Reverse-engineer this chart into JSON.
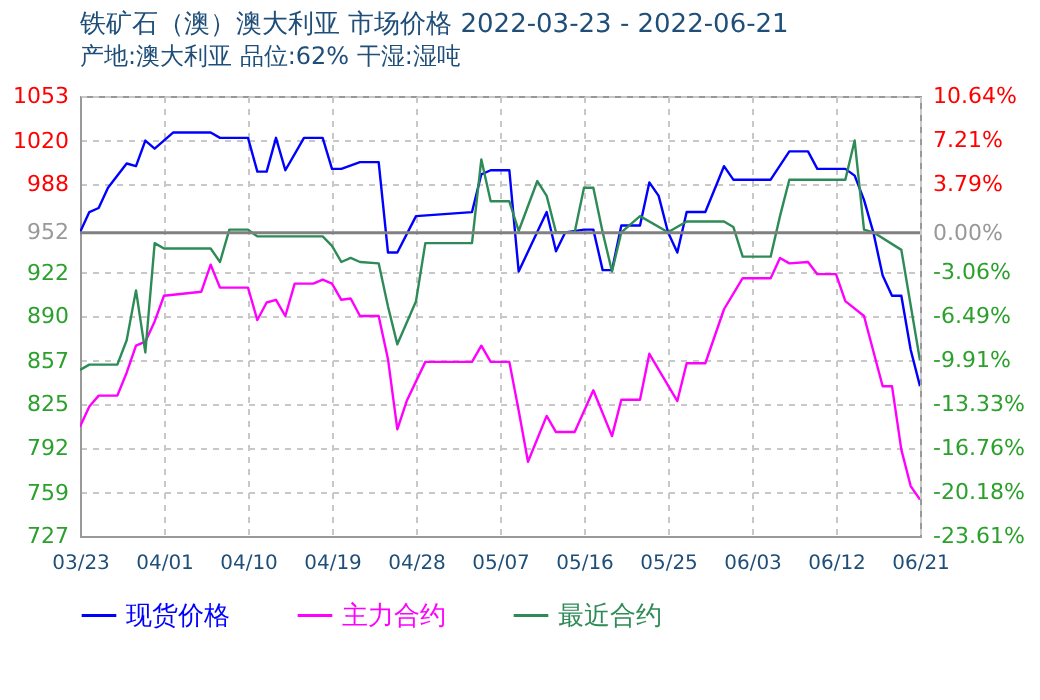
{
  "chart_data": {
    "type": "line",
    "title": "铁矿石（澳）澳大利亚 市场价格 2022-03-23 - 2022-06-21",
    "subtitle": "产地:澳大利亚 品位:62% 干湿:湿吨",
    "xlim": [
      "2022-03-23",
      "2022-06-21"
    ],
    "xticks": [
      {
        "value": "2022-03-23",
        "label": "03/23"
      },
      {
        "value": "2022-04-01",
        "label": "04/01"
      },
      {
        "value": "2022-04-10",
        "label": "04/10"
      },
      {
        "value": "2022-04-19",
        "label": "04/19"
      },
      {
        "value": "2022-04-28",
        "label": "04/28"
      },
      {
        "value": "2022-05-07",
        "label": "05/07"
      },
      {
        "value": "2022-05-16",
        "label": "05/16"
      },
      {
        "value": "2022-05-25",
        "label": "05/25"
      },
      {
        "value": "2022-06-03",
        "label": "06/03"
      },
      {
        "value": "2022-06-12",
        "label": "06/12"
      },
      {
        "value": "2022-06-21",
        "label": "06/21"
      }
    ],
    "ylim": [
      727,
      1053
    ],
    "yticks": [
      727,
      759,
      792,
      825,
      857,
      890,
      922,
      952,
      988,
      1020,
      1053
    ],
    "y2lim": [
      -23.61,
      10.64
    ],
    "y2ticks": [
      {
        "value": -23.61,
        "label": "-23.61%"
      },
      {
        "value": -20.18,
        "label": "-20.18%"
      },
      {
        "value": -16.76,
        "label": "-16.76%"
      },
      {
        "value": -13.33,
        "label": "-13.33%"
      },
      {
        "value": -9.91,
        "label": "-9.91%"
      },
      {
        "value": -6.49,
        "label": "-6.49%"
      },
      {
        "value": -3.06,
        "label": "-3.06%"
      },
      {
        "value": 0,
        "label": "0.00%"
      },
      {
        "value": 3.79,
        "label": "3.79%"
      },
      {
        "value": 7.21,
        "label": "7.21%"
      },
      {
        "value": 10.64,
        "label": "10.64%"
      }
    ],
    "ref_lines": [
      {
        "axis": "y2",
        "value": 0,
        "color": "#808080"
      }
    ],
    "grid": true,
    "legend": "bottom",
    "line_style": "solid",
    "marker": "none",
    "series": [
      {
        "name": "现货价格",
        "color": "#0000ff",
        "x": [
          "2022-03-23",
          "2022-03-24",
          "2022-03-25",
          "2022-03-26",
          "2022-03-28",
          "2022-03-29",
          "2022-03-30",
          "2022-03-31",
          "2022-04-02",
          "2022-04-06",
          "2022-04-07",
          "2022-04-10",
          "2022-04-11",
          "2022-04-12",
          "2022-04-13",
          "2022-04-14",
          "2022-04-16",
          "2022-04-18",
          "2022-04-19",
          "2022-04-20",
          "2022-04-22",
          "2022-04-24",
          "2022-04-25",
          "2022-04-26",
          "2022-04-28",
          "2022-05-04",
          "2022-05-05",
          "2022-05-06",
          "2022-05-08",
          "2022-05-09",
          "2022-05-12",
          "2022-05-13",
          "2022-05-14",
          "2022-05-16",
          "2022-05-17",
          "2022-05-18",
          "2022-05-19",
          "2022-05-20",
          "2022-05-22",
          "2022-05-23",
          "2022-05-24",
          "2022-05-25",
          "2022-05-26",
          "2022-05-27",
          "2022-05-29",
          "2022-05-31",
          "2022-06-01",
          "2022-06-05",
          "2022-06-07",
          "2022-06-09",
          "2022-06-10",
          "2022-06-13",
          "2022-06-14",
          "2022-06-15",
          "2022-06-16",
          "2022-06-17",
          "2022-06-18",
          "2022-06-19",
          "2022-06-20",
          "2022-06-21"
        ],
        "values": [
          952,
          967,
          970,
          985,
          1003,
          1001,
          1020,
          1014,
          1026,
          1026,
          1022,
          1022,
          997,
          997,
          1022,
          998,
          1022,
          1022,
          999,
          999,
          1004,
          1004,
          937,
          937,
          964,
          967,
          995,
          998,
          998,
          923,
          967,
          938,
          952,
          954,
          954,
          924,
          924,
          957,
          957,
          989,
          979,
          952,
          937,
          967,
          967,
          1001,
          991,
          991,
          1012,
          1012,
          999,
          999,
          994,
          976,
          952,
          920,
          905,
          905,
          865,
          838
        ]
      },
      {
        "name": "主力合约",
        "color": "#ff00ff",
        "x": [
          "2022-03-23",
          "2022-03-24",
          "2022-03-25",
          "2022-03-27",
          "2022-03-28",
          "2022-03-29",
          "2022-03-30",
          "2022-03-31",
          "2022-04-01",
          "2022-04-05",
          "2022-04-06",
          "2022-04-07",
          "2022-04-10",
          "2022-04-11",
          "2022-04-12",
          "2022-04-13",
          "2022-04-14",
          "2022-04-15",
          "2022-04-17",
          "2022-04-18",
          "2022-04-19",
          "2022-04-20",
          "2022-04-21",
          "2022-04-22",
          "2022-04-24",
          "2022-04-25",
          "2022-04-26",
          "2022-04-27",
          "2022-04-29",
          "2022-05-04",
          "2022-05-05",
          "2022-05-06",
          "2022-05-08",
          "2022-05-09",
          "2022-05-10",
          "2022-05-12",
          "2022-05-13",
          "2022-05-15",
          "2022-05-17",
          "2022-05-19",
          "2022-05-20",
          "2022-05-22",
          "2022-05-23",
          "2022-05-26",
          "2022-05-27",
          "2022-05-29",
          "2022-05-31",
          "2022-06-02",
          "2022-06-05",
          "2022-06-06",
          "2022-06-07",
          "2022-06-09",
          "2022-06-10",
          "2022-06-12",
          "2022-06-13",
          "2022-06-15",
          "2022-06-17",
          "2022-06-18",
          "2022-06-19",
          "2022-06-20",
          "2022-06-21"
        ],
        "values": [
          808,
          823,
          831,
          831,
          848,
          868,
          871,
          886,
          905,
          908,
          928,
          911,
          911,
          887,
          900,
          902,
          890,
          914,
          914,
          917,
          914,
          902,
          903,
          890,
          890,
          858,
          806,
          827,
          856,
          856,
          868,
          856,
          856,
          820,
          782,
          816,
          804,
          804,
          835,
          801,
          828,
          828,
          862,
          827,
          855,
          855,
          895,
          918,
          918,
          933,
          929,
          930,
          921,
          921,
          901,
          890,
          838,
          838,
          791,
          764,
          754
        ]
      },
      {
        "name": "最近合约",
        "color": "#2e8b57",
        "x": [
          "2022-03-23",
          "2022-03-24",
          "2022-03-27",
          "2022-03-28",
          "2022-03-29",
          "2022-03-30",
          "2022-03-31",
          "2022-04-01",
          "2022-04-06",
          "2022-04-07",
          "2022-04-08",
          "2022-04-10",
          "2022-04-11",
          "2022-04-18",
          "2022-04-19",
          "2022-04-20",
          "2022-04-21",
          "2022-04-22",
          "2022-04-24",
          "2022-04-25",
          "2022-04-26",
          "2022-04-28",
          "2022-04-29",
          "2022-05-04",
          "2022-05-05",
          "2022-05-06",
          "2022-05-08",
          "2022-05-09",
          "2022-05-11",
          "2022-05-12",
          "2022-05-13",
          "2022-05-15",
          "2022-05-16",
          "2022-05-17",
          "2022-05-18",
          "2022-05-19",
          "2022-05-20",
          "2022-05-22",
          "2022-05-25",
          "2022-05-27",
          "2022-05-31",
          "2022-06-01",
          "2022-06-02",
          "2022-06-05",
          "2022-06-06",
          "2022-06-07",
          "2022-06-13",
          "2022-06-14",
          "2022-06-15",
          "2022-06-16",
          "2022-06-19",
          "2022-06-21"
        ],
        "values": [
          850,
          854,
          854,
          872,
          909,
          863,
          944,
          940,
          940,
          930,
          954,
          954,
          949,
          949,
          942,
          930,
          933,
          930,
          929,
          897,
          869,
          901,
          944,
          944,
          1006,
          975,
          975,
          953,
          990,
          979,
          952,
          952,
          985,
          985,
          952,
          923,
          952,
          964,
          952,
          960,
          960,
          956,
          934,
          934,
          964,
          991,
          991,
          1020,
          954,
          952,
          939,
          857
        ]
      }
    ]
  }
}
